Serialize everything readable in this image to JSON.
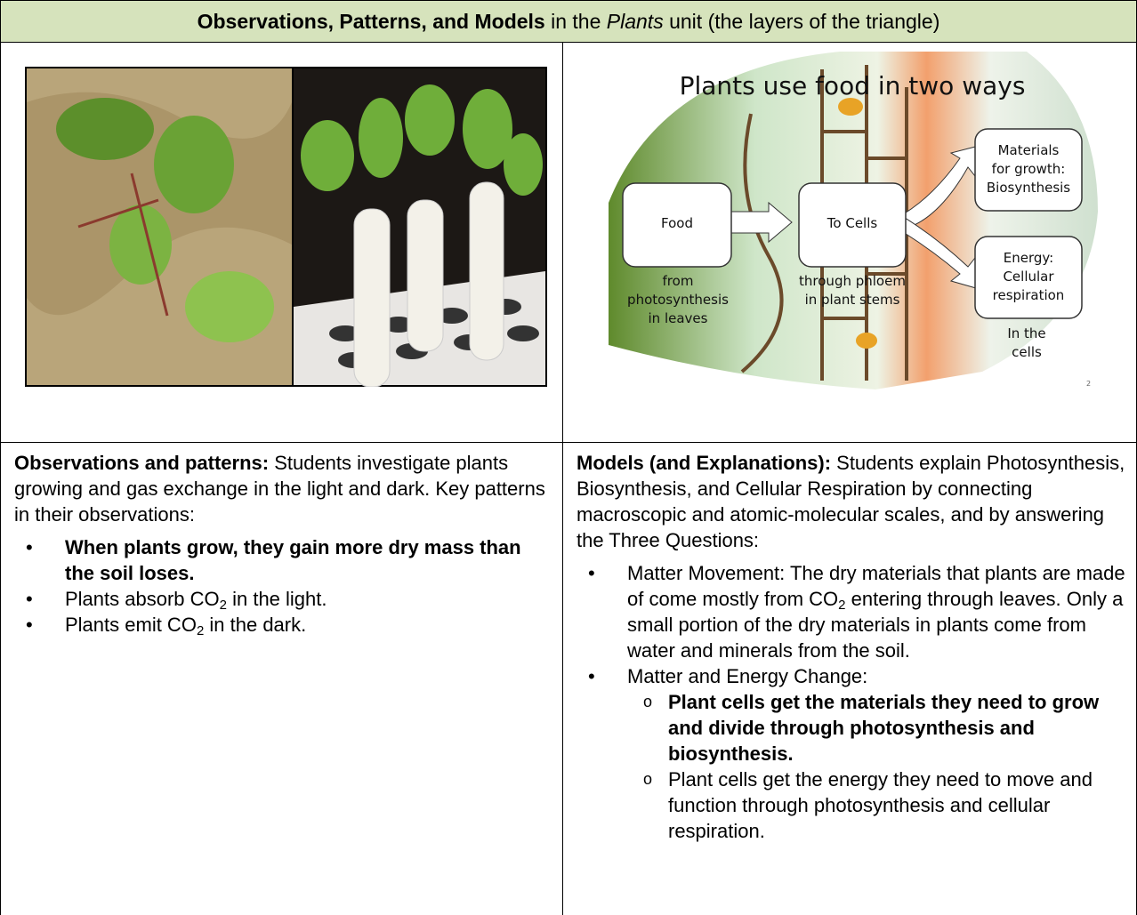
{
  "header": {
    "bold": "Observations, Patterns, and Models",
    "middle": " in the ",
    "italic": "Plants",
    "end": " unit (the layers of the triangle)"
  },
  "diagram": {
    "title": "Plants use food in two ways",
    "food": "Food",
    "to_cells": "To Cells",
    "growth": [
      "Materials",
      "for growth:",
      "Biosynthesis"
    ],
    "energy": [
      "Energy:",
      "Cellular",
      "respiration"
    ],
    "from": [
      "from",
      "photosynthesis",
      "in leaves"
    ],
    "through": [
      "through phloem",
      "in plant stems"
    ],
    "in_cells": [
      "In the",
      "cells"
    ],
    "slide_number": "2"
  },
  "left": {
    "label": "Observations and patterns:",
    "intro": " Students investigate plants growing and gas exchange in the light and dark. Key patterns in their observations:",
    "bullets": [
      [
        "When plants grow, they gain more dry mass than the soil loses."
      ],
      [
        "Plants absorb CO",
        "2",
        " in the light."
      ],
      [
        "Plants emit CO",
        "2",
        " in the dark."
      ]
    ]
  },
  "right": {
    "label": "Models (and Explanations):",
    "intro": " Students explain Photosynthesis, Biosynthesis, and Cellular Respiration by connecting macroscopic and atomic-molecular scales, and by answering the Three Questions:",
    "bullets": [
      {
        "text": [
          "Matter Movement: The dry materials that plants are made of come mostly from CO",
          "2",
          " entering through leaves. Only a small portion of the dry materials in plants come from water and minerals from the soil."
        ]
      },
      {
        "text": [
          "Matter and Energy Change:"
        ],
        "sub_bullets": [
          "Plant cells get the materials they need to grow and divide through photosynthesis and biosynthesis.",
          "Plant cells get the energy they need to move and function through photosynthesis and cellular respiration."
        ]
      }
    ]
  }
}
